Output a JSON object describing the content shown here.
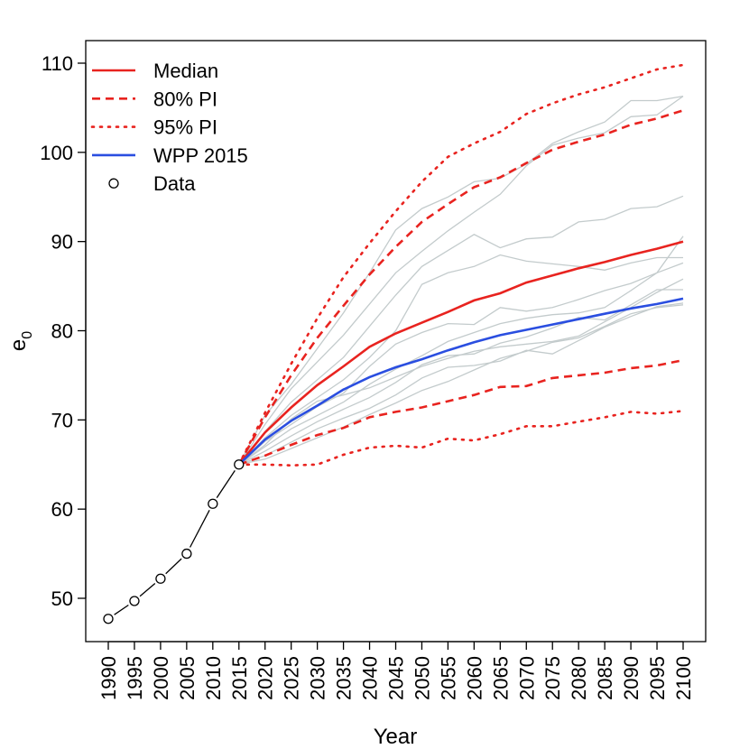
{
  "chart_data": {
    "type": "line",
    "xlabel": "Year",
    "ylabel": "e",
    "ylabel_subscript": "0",
    "xlim": [
      1988,
      2104
    ],
    "ylim": [
      45,
      112.5
    ],
    "x_ticks": [
      1990,
      1995,
      2000,
      2005,
      2010,
      2015,
      2020,
      2025,
      2030,
      2035,
      2040,
      2045,
      2050,
      2055,
      2060,
      2065,
      2070,
      2075,
      2080,
      2085,
      2090,
      2095,
      2100
    ],
    "y_ticks": [
      50,
      60,
      70,
      80,
      90,
      100,
      110
    ],
    "legend": [
      {
        "label": "Median",
        "color": "#e8231f",
        "style": "solid"
      },
      {
        "label": "80% PI",
        "color": "#e8231f",
        "style": "dashed"
      },
      {
        "label": "95% PI",
        "color": "#e8231f",
        "style": "dotted"
      },
      {
        "label": "WPP 2015",
        "color": "#2a4ee0",
        "style": "solid"
      },
      {
        "label": "Data",
        "color": "#000000",
        "style": "circle"
      }
    ],
    "data_observed": {
      "name": "Data",
      "x": [
        1990,
        1995,
        2000,
        2005,
        2010,
        2015
      ],
      "y": [
        47.7,
        49.7,
        52.2,
        55.0,
        60.6,
        65.0
      ]
    },
    "forecast_x": [
      2015,
      2020,
      2025,
      2030,
      2035,
      2040,
      2045,
      2050,
      2055,
      2060,
      2065,
      2070,
      2075,
      2080,
      2085,
      2090,
      2095,
      2100
    ],
    "series": [
      {
        "name": "Median",
        "color": "#e8231f",
        "style": "solid",
        "values": [
          65.0,
          68.6,
          71.4,
          73.9,
          76.0,
          78.2,
          79.7,
          80.9,
          82.1,
          83.4,
          84.2,
          85.4,
          86.2,
          87.0,
          87.7,
          88.5,
          89.2,
          90.0
        ]
      },
      {
        "name": "80% PI upper",
        "color": "#e8231f",
        "style": "dashed",
        "values": [
          65.0,
          70.3,
          75.0,
          79.2,
          82.8,
          86.3,
          89.4,
          92.2,
          94.2,
          96.1,
          97.2,
          98.8,
          100.3,
          101.2,
          102.0,
          103.1,
          103.8,
          104.7
        ]
      },
      {
        "name": "80% PI lower",
        "color": "#e8231f",
        "style": "dashed",
        "values": [
          65.0,
          66.0,
          67.2,
          68.3,
          69.1,
          70.3,
          70.9,
          71.4,
          72.1,
          72.8,
          73.7,
          73.8,
          74.7,
          75.0,
          75.3,
          75.8,
          76.1,
          76.7
        ]
      },
      {
        "name": "95% PI upper",
        "color": "#e8231f",
        "style": "dotted",
        "values": [
          65.0,
          70.8,
          76.3,
          81.4,
          86.0,
          89.8,
          93.4,
          96.7,
          99.5,
          101.0,
          102.3,
          104.3,
          105.5,
          106.5,
          107.3,
          108.3,
          109.3,
          109.8
        ]
      },
      {
        "name": "95% PI lower",
        "color": "#e8231f",
        "style": "dotted",
        "values": [
          65.0,
          65.0,
          64.9,
          65.0,
          66.1,
          66.9,
          67.1,
          66.9,
          67.9,
          67.7,
          68.4,
          69.3,
          69.3,
          69.8,
          70.3,
          70.9,
          70.7,
          71.0
        ]
      },
      {
        "name": "WPP 2015",
        "color": "#2a4ee0",
        "style": "solid",
        "values": [
          65.0,
          67.8,
          69.9,
          71.6,
          73.4,
          74.8,
          75.9,
          76.8,
          77.8,
          78.7,
          79.5,
          80.1,
          80.7,
          81.3,
          81.9,
          82.5,
          83.0,
          83.6
        ]
      }
    ],
    "trajectories": [
      {
        "values": [
          65.0,
          70.5,
          74.0,
          78.0,
          82.0,
          86.5,
          91.3,
          93.7,
          95.0,
          96.7,
          97.1,
          98.7,
          101.0,
          102.3,
          103.4,
          105.8,
          105.8,
          106.3
        ]
      },
      {
        "values": [
          65.0,
          69.5,
          73.5,
          76.5,
          79.5,
          83.0,
          86.5,
          88.9,
          91.2,
          93.3,
          95.3,
          98.5,
          100.8,
          101.6,
          102.2,
          104.0,
          104.2,
          106.3
        ]
      },
      {
        "values": [
          65.0,
          68.7,
          72.0,
          74.5,
          77.0,
          80.5,
          84.0,
          87.2,
          89.0,
          90.8,
          89.3,
          90.3,
          90.5,
          92.2,
          92.5,
          93.7,
          93.9,
          95.1
        ]
      },
      {
        "values": [
          65.0,
          68.0,
          70.5,
          72.5,
          74.5,
          77.0,
          80.0,
          85.2,
          86.5,
          87.2,
          88.5,
          87.8,
          87.5,
          87.2,
          86.8,
          87.6,
          88.2,
          88.2
        ]
      },
      {
        "values": [
          65.0,
          67.6,
          69.5,
          71.5,
          73.0,
          76.0,
          78.5,
          79.8,
          80.8,
          80.7,
          82.6,
          82.2,
          82.6,
          83.5,
          84.5,
          85.3,
          86.5,
          87.6
        ]
      },
      {
        "values": [
          65.0,
          67.0,
          69.0,
          70.5,
          72.0,
          74.0,
          75.7,
          77.2,
          78.8,
          79.8,
          80.8,
          81.4,
          81.8,
          82.0,
          82.6,
          84.5,
          86.5,
          90.6
        ]
      },
      {
        "values": [
          65.0,
          66.5,
          68.2,
          69.8,
          71.2,
          72.5,
          74.2,
          76.2,
          77.2,
          77.4,
          78.6,
          79.3,
          80.3,
          81.5,
          81.2,
          82.9,
          84.6,
          84.6
        ]
      },
      {
        "values": [
          65.0,
          66.0,
          67.5,
          69.0,
          70.2,
          71.3,
          72.8,
          74.7,
          75.9,
          76.1,
          76.6,
          77.8,
          77.4,
          78.9,
          80.4,
          81.6,
          82.7,
          83.1
        ]
      },
      {
        "values": [
          65.0,
          65.6,
          66.8,
          68.0,
          69.2,
          70.6,
          71.9,
          73.3,
          74.3,
          75.6,
          76.9,
          77.7,
          78.7,
          79.2,
          80.5,
          81.9,
          82.6,
          82.9
        ]
      },
      {
        "values": [
          65.0,
          67.2,
          70.1,
          72.1,
          72.8,
          73.6,
          74.8,
          76.0,
          76.9,
          77.7,
          78.2,
          78.5,
          78.8,
          79.4,
          81.0,
          82.6,
          84.3,
          85.8
        ]
      }
    ]
  }
}
